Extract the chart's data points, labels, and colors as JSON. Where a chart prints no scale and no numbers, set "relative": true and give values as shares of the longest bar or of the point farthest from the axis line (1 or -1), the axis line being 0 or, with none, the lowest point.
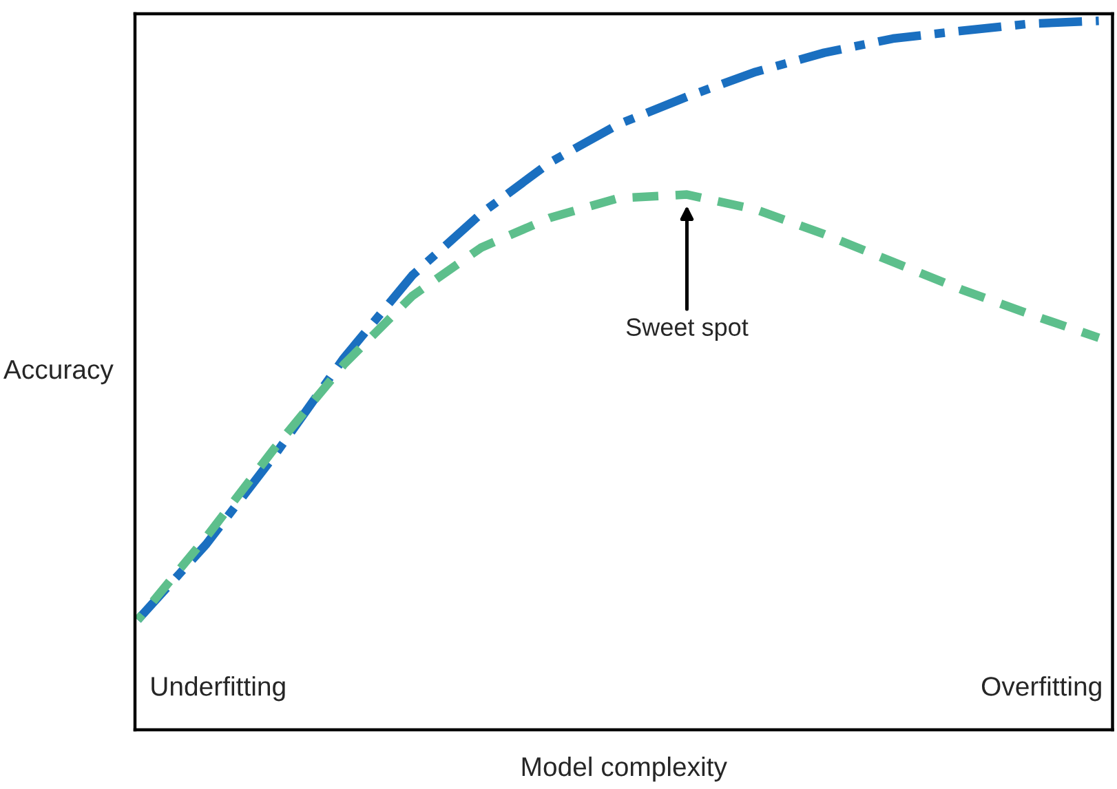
{
  "chart_data": {
    "type": "line",
    "relative": true,
    "xlabel": "Model complexity",
    "ylabel": "Accuracy",
    "categories": [
      null,
      null,
      null,
      null,
      null,
      null,
      null,
      null,
      null,
      null,
      null,
      null,
      null,
      null,
      null
    ],
    "series": [
      {
        "color": "#1a6fc0",
        "line_style": "dashdot",
        "values": [
          0.155,
          0.262,
          0.388,
          0.524,
          0.641,
          0.728,
          0.8,
          0.854,
          0.893,
          0.928,
          0.955,
          0.975,
          0.986,
          0.996,
          1.0
        ]
      },
      {
        "color": "#5dbf8c",
        "line_style": "dashed",
        "values": [
          0.155,
          0.272,
          0.398,
          0.515,
          0.612,
          0.68,
          0.722,
          0.75,
          0.755,
          0.734,
          0.699,
          0.66,
          0.621,
          0.586,
          0.553
        ]
      }
    ],
    "annotations": [
      "Sweet spot",
      "Underfitting",
      "Overfitting"
    ],
    "tick_labels": false,
    "legend": false,
    "marker": "none"
  }
}
